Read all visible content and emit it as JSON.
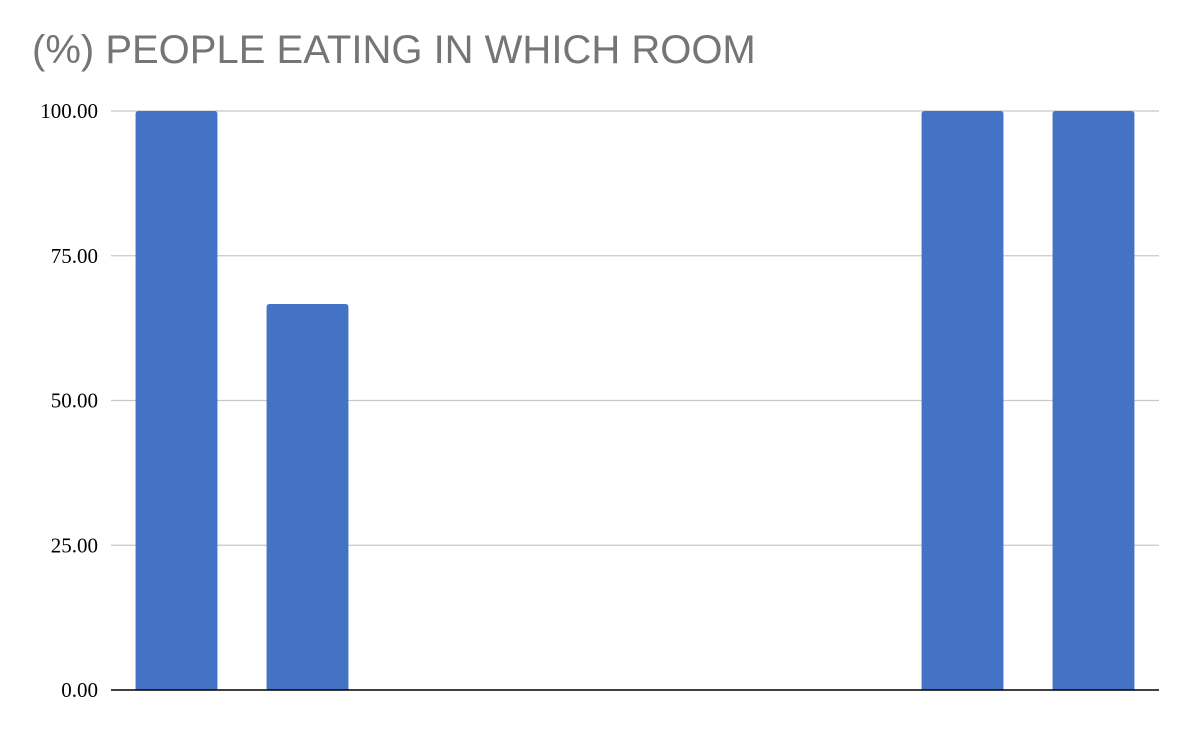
{
  "chart_data": {
    "type": "bar",
    "title": "(%) PEOPLE EATING IN WHICH ROOM",
    "xlabel": "",
    "ylabel": "",
    "categories": [
      "",
      "",
      "",
      "",
      "",
      "",
      "",
      ""
    ],
    "values": [
      100,
      66.67,
      0,
      0,
      0,
      0,
      100,
      100
    ],
    "ylim": [
      0,
      100
    ],
    "yticks": [
      "0.00",
      "25.00",
      "50.00",
      "75.00",
      "100.00"
    ],
    "grid": true,
    "legend": "none",
    "bar_color": "#4472c4",
    "grid_color": "#c8c8c8",
    "axis_color": "#000000",
    "title_color": "#757575"
  }
}
